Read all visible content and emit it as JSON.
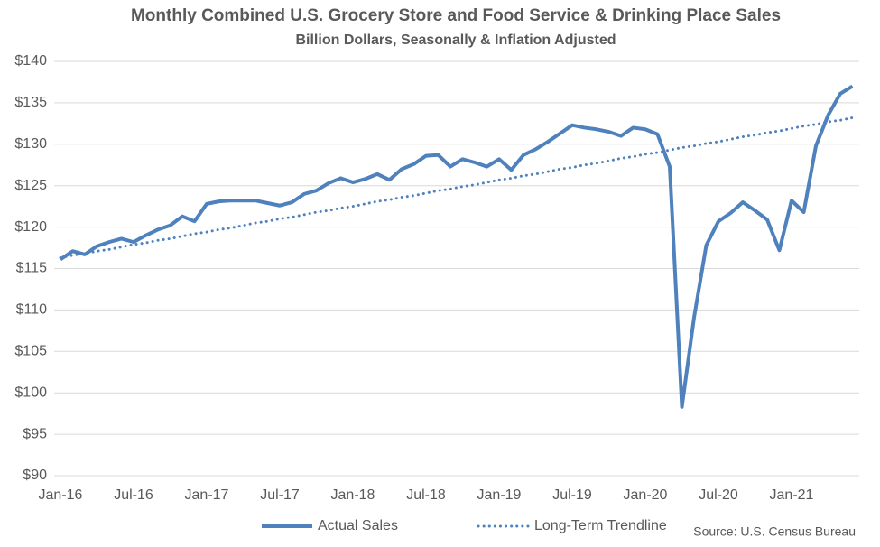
{
  "chart_data": {
    "type": "line",
    "title": "Monthly Combined U.S. Grocery Store and Food Service & Drinking Place Sales",
    "subtitle": "Billion Dollars, Seasonally & Inflation Adjusted",
    "source": "Source: U.S. Census Bureau",
    "categories": [
      "Jan-16",
      null,
      null,
      null,
      null,
      null,
      "Jul-16",
      null,
      null,
      null,
      null,
      null,
      "Jan-17",
      null,
      null,
      null,
      null,
      null,
      "Jul-17",
      null,
      null,
      null,
      null,
      null,
      "Jan-18",
      null,
      null,
      null,
      null,
      null,
      "Jul-18",
      null,
      null,
      null,
      null,
      null,
      "Jan-19",
      null,
      null,
      null,
      null,
      null,
      "Jul-19",
      null,
      null,
      null,
      null,
      null,
      "Jan-20",
      null,
      null,
      null,
      null,
      null,
      "Jul-20",
      null,
      null,
      null,
      null,
      null,
      "Jan-21",
      null,
      null,
      null,
      null,
      null
    ],
    "series": [
      {
        "name": "Actual Sales",
        "color": "#4f81bd",
        "style": "solid",
        "values": [
          116.1,
          117.1,
          116.7,
          117.7,
          118.2,
          118.6,
          118.2,
          119.0,
          119.7,
          120.2,
          121.3,
          120.7,
          122.8,
          123.1,
          123.2,
          123.2,
          123.2,
          122.9,
          122.6,
          123.0,
          124.0,
          124.4,
          125.3,
          125.9,
          125.4,
          125.8,
          126.4,
          125.7,
          127.0,
          127.6,
          128.6,
          128.7,
          127.3,
          128.2,
          127.8,
          127.3,
          128.2,
          126.9,
          128.7,
          129.4,
          130.3,
          131.3,
          132.3,
          132.0,
          131.8,
          131.5,
          131.0,
          132.0,
          131.8,
          131.2,
          127.3,
          98.3,
          109.1,
          117.8,
          120.7,
          121.7,
          123.0,
          122.0,
          120.9,
          117.2,
          123.2,
          121.8,
          129.8,
          133.5,
          136.1,
          137.0
        ]
      },
      {
        "name": "Long-Term Trendline",
        "color": "#4f81bd",
        "style": "dotted",
        "values": [
          116.3,
          116.6,
          116.8,
          117.1,
          117.3,
          117.6,
          117.9,
          118.1,
          118.4,
          118.6,
          118.9,
          119.2,
          119.4,
          119.7,
          119.9,
          120.2,
          120.5,
          120.7,
          121.0,
          121.2,
          121.5,
          121.8,
          122.0,
          122.3,
          122.5,
          122.8,
          123.1,
          123.3,
          123.6,
          123.8,
          124.1,
          124.4,
          124.6,
          124.9,
          125.1,
          125.4,
          125.7,
          125.9,
          126.2,
          126.4,
          126.7,
          127.0,
          127.2,
          127.5,
          127.7,
          128.0,
          128.3,
          128.5,
          128.8,
          129.0,
          129.3,
          129.6,
          129.8,
          130.1,
          130.3,
          130.6,
          130.9,
          131.1,
          131.4,
          131.6,
          131.9,
          132.2,
          132.4,
          132.7,
          132.9,
          133.2
        ]
      }
    ],
    "ylim": [
      90,
      140
    ],
    "yticks": [
      {
        "value": 90,
        "label": "$90"
      },
      {
        "value": 95,
        "label": "$95"
      },
      {
        "value": 100,
        "label": "$100"
      },
      {
        "value": 105,
        "label": "$105"
      },
      {
        "value": 110,
        "label": "$110"
      },
      {
        "value": 115,
        "label": "$115"
      },
      {
        "value": 120,
        "label": "$120"
      },
      {
        "value": 125,
        "label": "$125"
      },
      {
        "value": 130,
        "label": "$130"
      },
      {
        "value": 135,
        "label": "$135"
      },
      {
        "value": 140,
        "label": "$140"
      }
    ],
    "grid": true,
    "legend": "bottom"
  }
}
